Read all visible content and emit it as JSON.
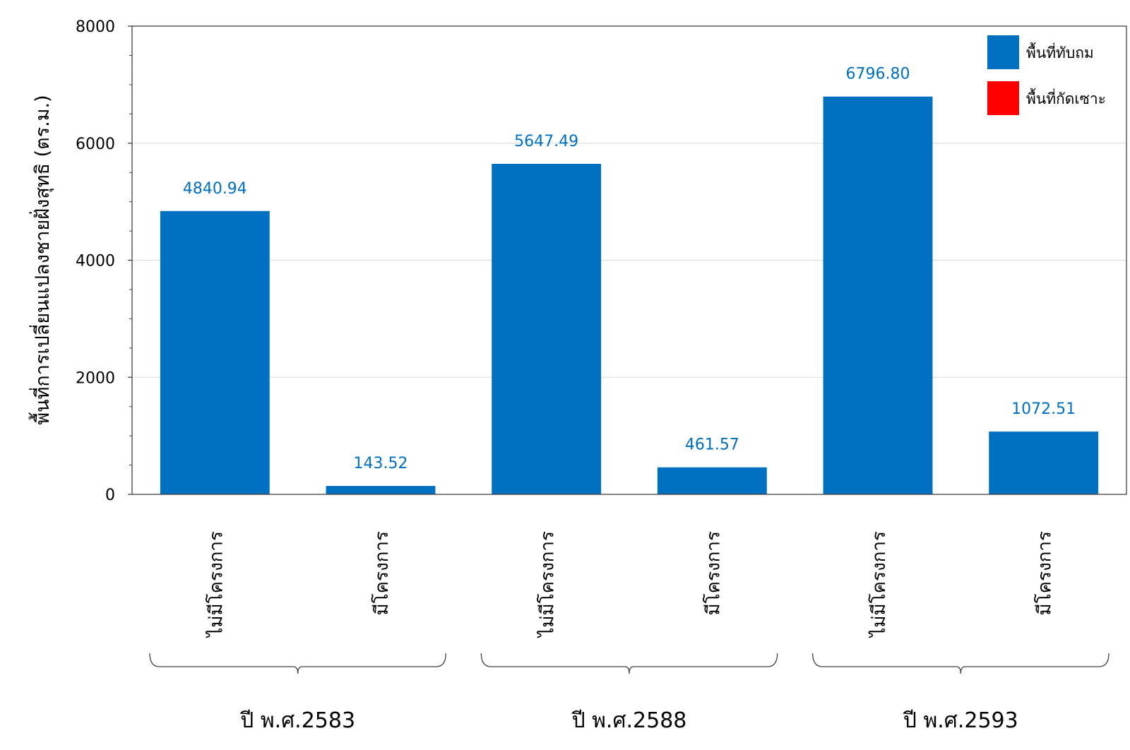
{
  "chart_data": {
    "type": "bar",
    "ylabel": "พื้นที่การเปลี่ยนแปลงชายฝั่งสุทธิ (ตร.ม.)",
    "xlabel": "",
    "ylim": [
      0,
      8000
    ],
    "yticks": [
      0,
      2000,
      4000,
      6000,
      8000
    ],
    "grid": true,
    "legend_position": "top-right",
    "categories": [
      "ไม่มีโครงการ",
      "มีโครงการ",
      "ไม่มีโครงการ",
      "มีโครงการ",
      "ไม่มีโครงการ",
      "มีโครงการ"
    ],
    "groups": [
      {
        "label": "ปี พ.ศ.2583",
        "categories": [
          "ไม่มีโครงการ",
          "มีโครงการ"
        ]
      },
      {
        "label": "ปี พ.ศ.2588",
        "categories": [
          "ไม่มีโครงการ",
          "มีโครงการ"
        ]
      },
      {
        "label": "ปี พ.ศ.2593",
        "categories": [
          "ไม่มีโครงการ",
          "มีโครงการ"
        ]
      }
    ],
    "series": [
      {
        "name": "พื้นที่ทับถม",
        "color": "#0070C0",
        "values": [
          4840.94,
          143.52,
          5647.49,
          461.57,
          6796.8,
          1072.51
        ]
      },
      {
        "name": "พื้นที่กัดเซาะ",
        "color": "#FF0000",
        "values": [
          0,
          0,
          0,
          0,
          0,
          0
        ]
      }
    ],
    "data_labels": [
      "4840.94",
      "143.52",
      "5647.49",
      "461.57",
      "6796.80",
      "1072.51"
    ],
    "data_label_color": "#0070C0"
  }
}
